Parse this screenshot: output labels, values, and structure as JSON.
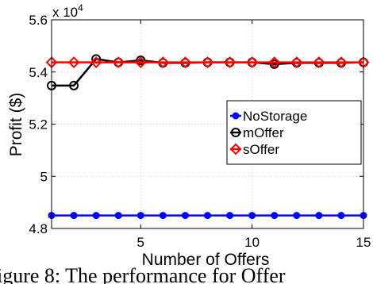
{
  "chart_data": {
    "type": "line",
    "xlabel": "Number of Offers",
    "ylabel": "Profit ($)",
    "y_multiplier": "x 10",
    "y_multiplier_exp": "4",
    "xlim": [
      1,
      15
    ],
    "ylim": [
      4.8,
      5.6
    ],
    "xticks": [
      5,
      10,
      15
    ],
    "xtick_labels": [
      "5",
      "10",
      "15"
    ],
    "yticks": [
      4.8,
      5.0,
      5.2,
      5.4,
      5.6
    ],
    "ytick_labels": [
      "4.8",
      "5",
      "5.2",
      "5.4",
      "5.6"
    ],
    "grid": true,
    "legend_position": "right",
    "x": [
      1,
      2,
      3,
      4,
      5,
      6,
      7,
      8,
      9,
      10,
      11,
      12,
      13,
      14,
      15
    ],
    "series": [
      {
        "name": "NoStorage",
        "color": "#0000ff",
        "marker": "filled-circle",
        "values": [
          4.85,
          4.85,
          4.85,
          4.85,
          4.85,
          4.85,
          4.85,
          4.85,
          4.85,
          4.85,
          4.85,
          4.85,
          4.85,
          4.85,
          4.85
        ]
      },
      {
        "name": "mOffer",
        "color": "#000000",
        "marker": "open-circle",
        "values": [
          5.348,
          5.348,
          5.45,
          5.437,
          5.445,
          5.435,
          5.435,
          5.437,
          5.437,
          5.437,
          5.43,
          5.435,
          5.435,
          5.435,
          5.437
        ]
      },
      {
        "name": "sOffer",
        "color": "#ff0000",
        "marker": "diamond",
        "values": [
          5.437,
          5.437,
          5.437,
          5.437,
          5.437,
          5.437,
          5.437,
          5.437,
          5.437,
          5.437,
          5.437,
          5.437,
          5.437,
          5.437,
          5.437
        ]
      }
    ]
  },
  "caption_fragment": "igure 8: The performance for Offer"
}
